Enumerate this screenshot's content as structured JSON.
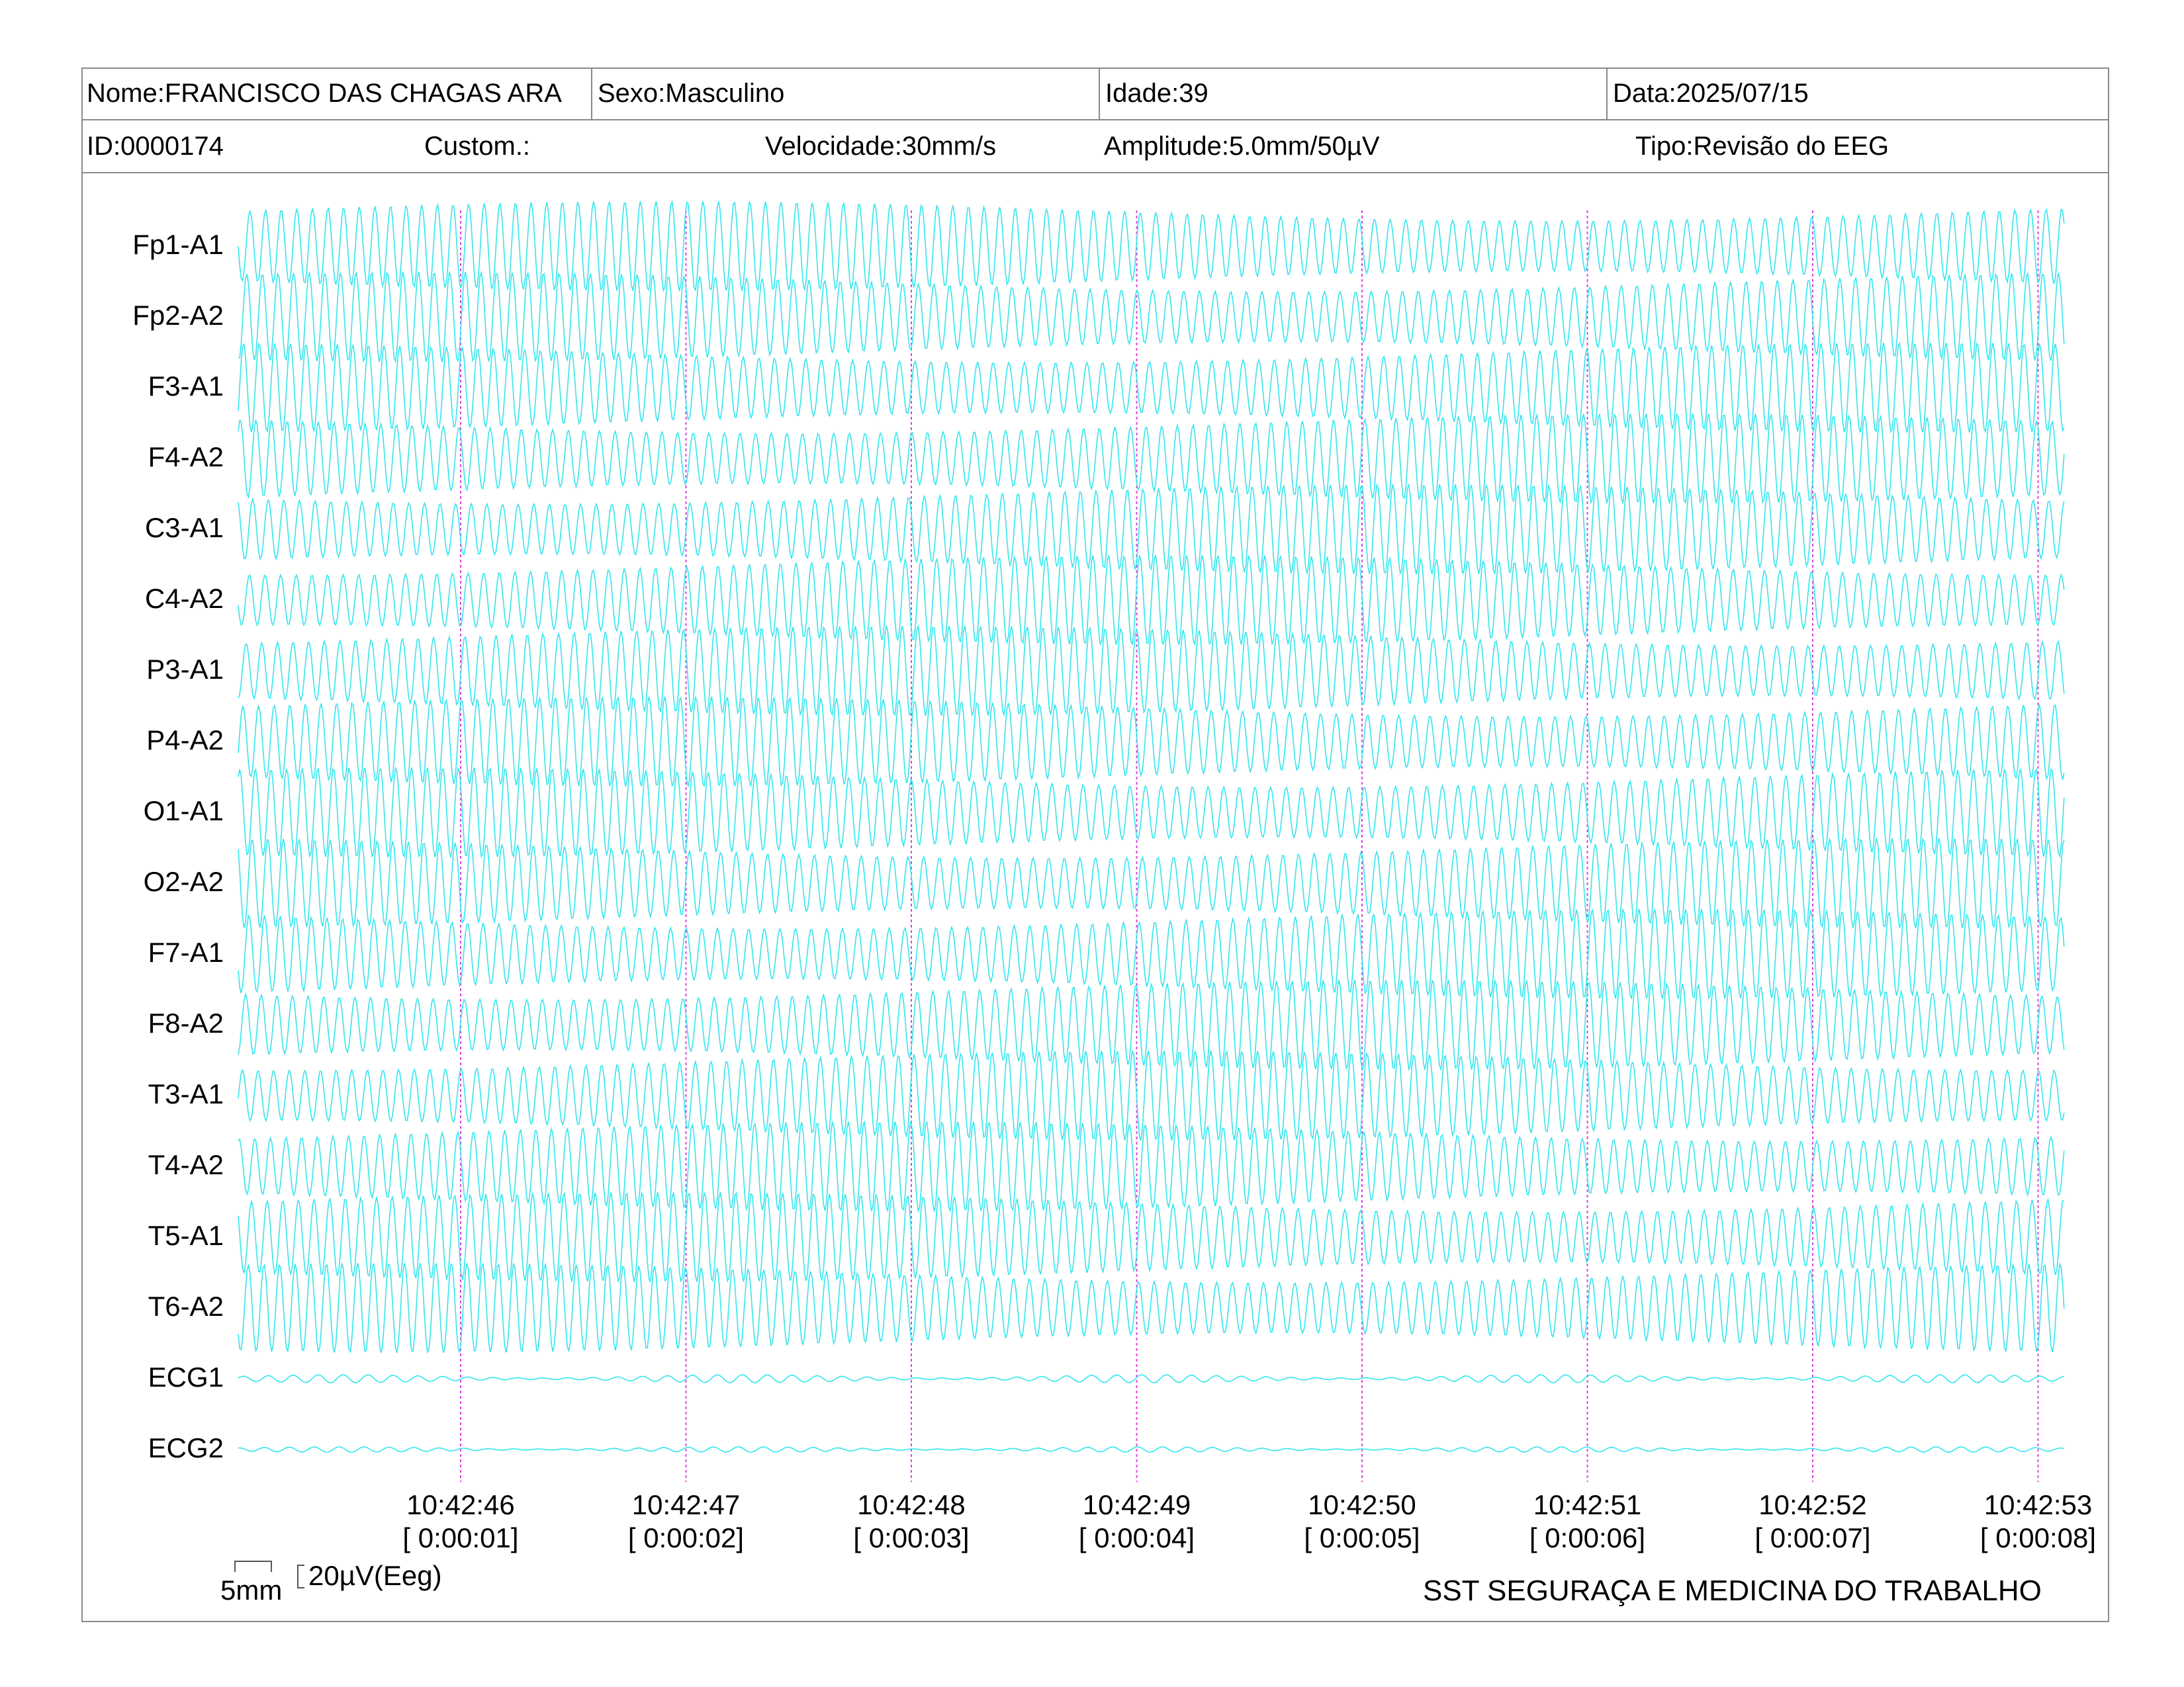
{
  "header": {
    "nome": "Nome:FRANCISCO DAS CHAGAS ARA",
    "sexo": "Sexo:Masculino",
    "idade": "Idade:39",
    "data": "Data:2025/07/15",
    "id": "ID:0000174",
    "custom": "Custom.:",
    "velocidade": "Velocidade:30mm/s",
    "amplitude": "Amplitude:5.0mm/50µV",
    "tipo": "Tipo:Revisão do EEG"
  },
  "channels": [
    "Fp1-A1",
    "Fp2-A2",
    "F3-A1",
    "F4-A2",
    "C3-A1",
    "C4-A2",
    "P3-A1",
    "P4-A2",
    "O1-A1",
    "O2-A2",
    "F7-A1",
    "F8-A2",
    "T3-A1",
    "T4-A2",
    "T5-A1",
    "T6-A2",
    "ECG1",
    "ECG2"
  ],
  "time_marks": [
    {
      "clock": "10:42:46",
      "elapsed": "[ 0:00:01]"
    },
    {
      "clock": "10:42:47",
      "elapsed": "[ 0:00:02]"
    },
    {
      "clock": "10:42:48",
      "elapsed": "[ 0:00:03]"
    },
    {
      "clock": "10:42:49",
      "elapsed": "[ 0:00:04]"
    },
    {
      "clock": "10:42:50",
      "elapsed": "[ 0:00:05]"
    },
    {
      "clock": "10:42:51",
      "elapsed": "[ 0:00:06]"
    },
    {
      "clock": "10:42:52",
      "elapsed": "[ 0:00:07]"
    },
    {
      "clock": "10:42:53",
      "elapsed": "[ 0:00:08]"
    }
  ],
  "scale": {
    "time": "5mm",
    "amplitude": "20µV(Eeg)"
  },
  "footer": "SST SEGURAÇA E MEDICINA DO TRABALHO",
  "colors": {
    "trace": "#33e6ee",
    "marker": "#e040e0",
    "border": "#8a8a8a"
  }
}
